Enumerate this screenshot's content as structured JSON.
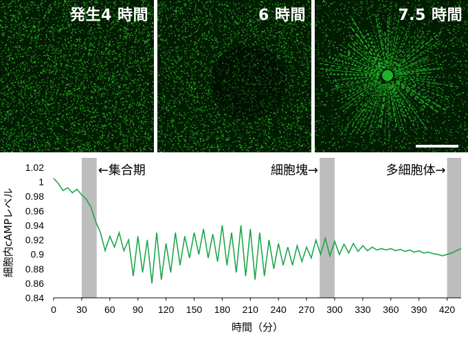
{
  "panels": [
    {
      "label": "発生4 時間"
    },
    {
      "label": "6 時間"
    },
    {
      "label": "7.5 時間"
    }
  ],
  "colors": {
    "trace": "#1aa64a",
    "shade": "#bdbdbd",
    "microscopy": "#22c22a"
  },
  "chart_data": {
    "type": "line",
    "xlabel": "時間（分）",
    "ylabel": "細胞内cAMPレベル",
    "xlim": [
      0,
      435
    ],
    "ylim": [
      0.84,
      1.02
    ],
    "x_ticks": [
      0,
      30,
      60,
      90,
      120,
      150,
      180,
      210,
      240,
      270,
      300,
      330,
      360,
      390,
      420
    ],
    "y_ticks": [
      "0.84",
      "0.86",
      "0.88",
      "0.9",
      "0.92",
      "0.94",
      "0.96",
      "0.98",
      "1",
      "1.02"
    ],
    "shaded_regions": [
      [
        30,
        46
      ],
      [
        284,
        300
      ],
      [
        420,
        435
      ]
    ],
    "annotations": [
      {
        "text": "←集合期",
        "x": 46
      },
      {
        "text": "細胞塊→",
        "x": 284
      },
      {
        "text": "多細胞体→",
        "x": 420
      }
    ],
    "series": [
      {
        "x": [
          0,
          5,
          10,
          15,
          20,
          25,
          30,
          35,
          40,
          45,
          50,
          55,
          60,
          65,
          70,
          75,
          80,
          85,
          90,
          95,
          100,
          105,
          110,
          115,
          120,
          125,
          130,
          135,
          140,
          145,
          150,
          155,
          160,
          165,
          170,
          175,
          180,
          185,
          190,
          195,
          200,
          205,
          210,
          215,
          220,
          225,
          230,
          235,
          240,
          245,
          250,
          255,
          260,
          265,
          270,
          275,
          280,
          285,
          290,
          295,
          300,
          305,
          310,
          315,
          320,
          325,
          330,
          335,
          340,
          345,
          350,
          355,
          360,
          365,
          370,
          375,
          380,
          385,
          390,
          395,
          400,
          405,
          410,
          415,
          420,
          425,
          430,
          435
        ],
        "values": [
          1.005,
          0.998,
          0.988,
          0.992,
          0.985,
          0.99,
          0.982,
          0.976,
          0.965,
          0.945,
          0.93,
          0.905,
          0.925,
          0.91,
          0.93,
          0.905,
          0.92,
          0.87,
          0.925,
          0.875,
          0.92,
          0.86,
          0.93,
          0.865,
          0.915,
          0.875,
          0.93,
          0.885,
          0.925,
          0.895,
          0.93,
          0.9,
          0.935,
          0.895,
          0.928,
          0.89,
          0.94,
          0.885,
          0.93,
          0.875,
          0.94,
          0.87,
          0.935,
          0.865,
          0.93,
          0.87,
          0.92,
          0.88,
          0.915,
          0.885,
          0.91,
          0.885,
          0.912,
          0.89,
          0.91,
          0.895,
          0.92,
          0.9,
          0.922,
          0.898,
          0.918,
          0.9,
          0.914,
          0.902,
          0.915,
          0.904,
          0.912,
          0.905,
          0.91,
          0.906,
          0.908,
          0.906,
          0.908,
          0.905,
          0.907,
          0.904,
          0.906,
          0.903,
          0.905,
          0.902,
          0.903,
          0.901,
          0.9,
          0.898,
          0.9,
          0.902,
          0.905,
          0.908
        ]
      }
    ]
  }
}
